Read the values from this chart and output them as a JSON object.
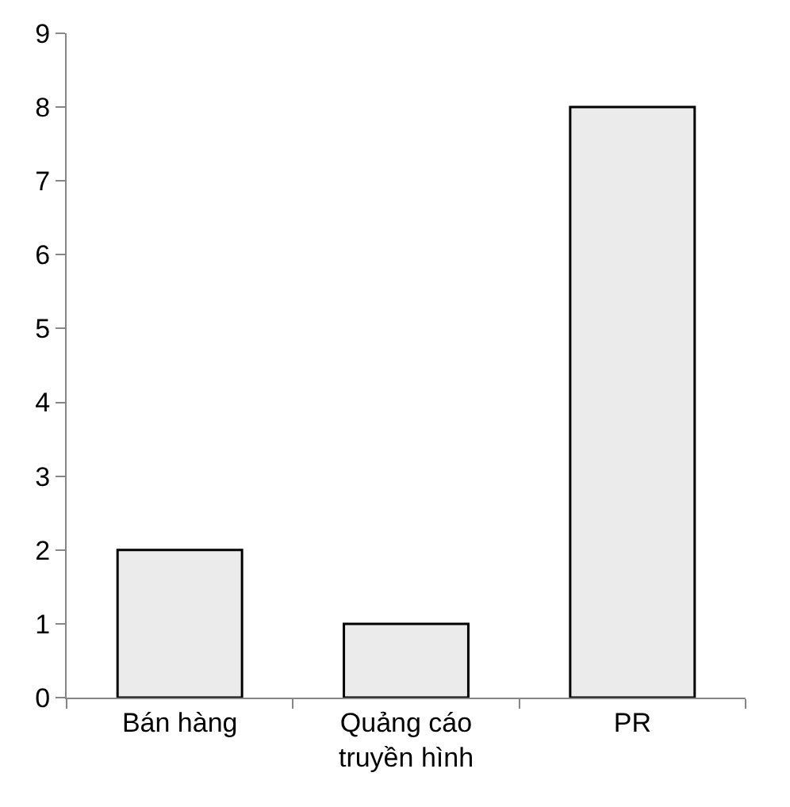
{
  "chart_data": {
    "type": "bar",
    "categories": [
      "Bán hàng",
      "Quảng cáo\ntruyền hình",
      "PR"
    ],
    "values": [
      2,
      1,
      8
    ],
    "color": "#ebebeb",
    "ylim": [
      0,
      9
    ],
    "yticks": [
      0,
      1,
      2,
      3,
      4,
      5,
      6,
      7,
      8,
      9
    ]
  }
}
